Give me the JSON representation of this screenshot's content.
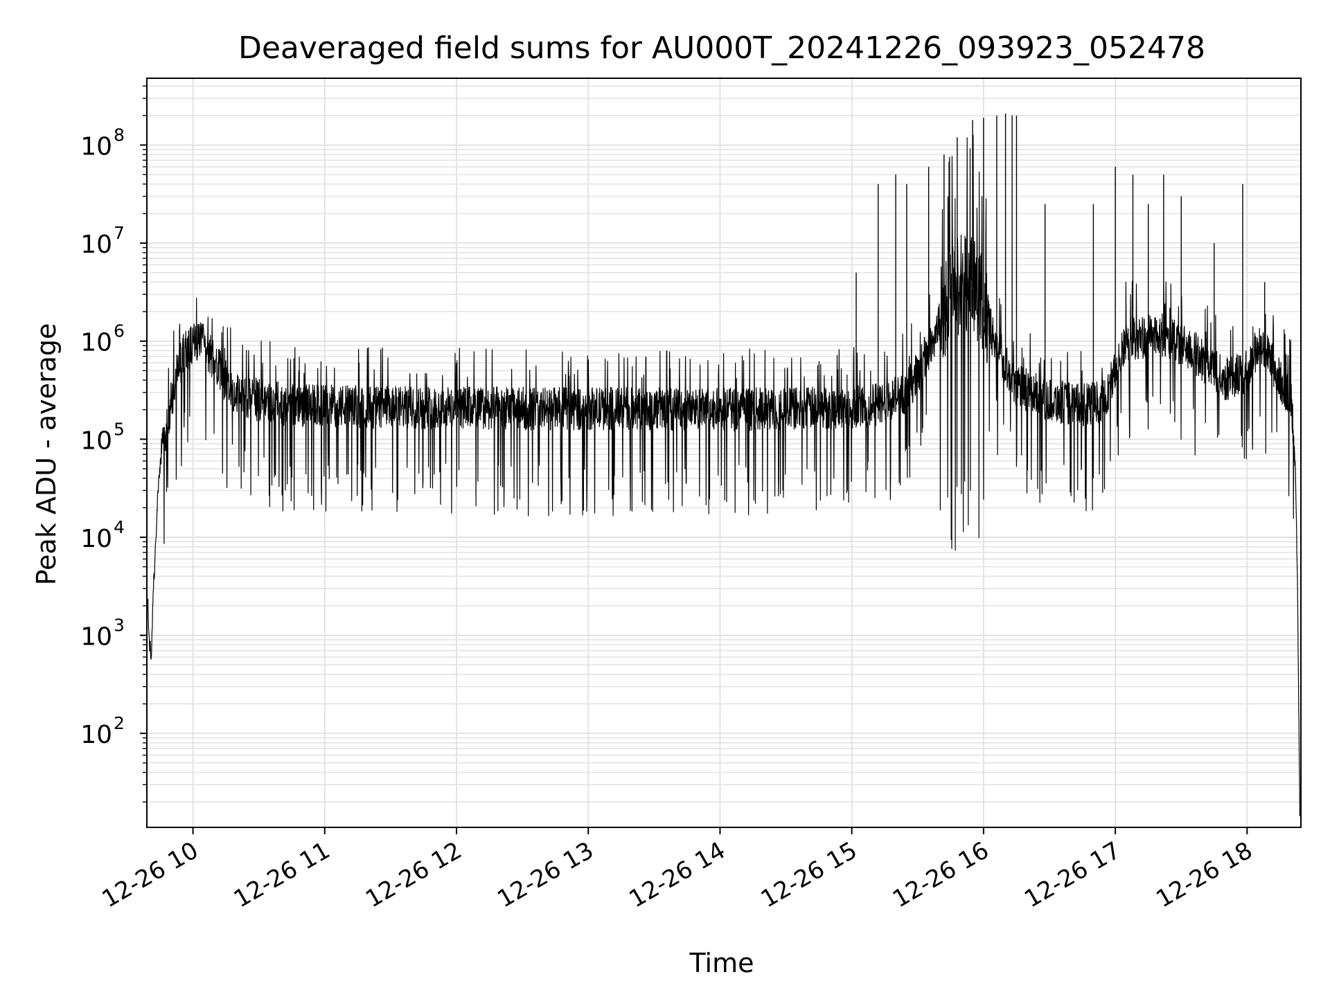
{
  "chart_data": {
    "type": "line",
    "title": "Deaveraged field sums for AU000T_20241226_093923_052478",
    "xlabel": "Time",
    "ylabel": "Peak ADU - average",
    "xlim": [
      "2024-12-26T09:39:00",
      "2024-12-26T18:24:30"
    ],
    "ylim": [
      11,
      480000000
    ],
    "yscale": "log",
    "grid": true,
    "grid_which": "both",
    "line_color": "#000000",
    "grid_color": "#e3e3e3",
    "x_ticks": [
      {
        "value": "2024-12-26T10:00:00",
        "label": "12-26 10"
      },
      {
        "value": "2024-12-26T11:00:00",
        "label": "12-26 11"
      },
      {
        "value": "2024-12-26T12:00:00",
        "label": "12-26 12"
      },
      {
        "value": "2024-12-26T13:00:00",
        "label": "12-26 13"
      },
      {
        "value": "2024-12-26T14:00:00",
        "label": "12-26 14"
      },
      {
        "value": "2024-12-26T15:00:00",
        "label": "12-26 15"
      },
      {
        "value": "2024-12-26T16:00:00",
        "label": "12-26 16"
      },
      {
        "value": "2024-12-26T17:00:00",
        "label": "12-26 17"
      },
      {
        "value": "2024-12-26T18:00:00",
        "label": "12-26 18"
      }
    ],
    "y_ticks": [
      {
        "value": 100,
        "label": "10",
        "exp": "2"
      },
      {
        "value": 1000,
        "label": "10",
        "exp": "3"
      },
      {
        "value": 10000,
        "label": "10",
        "exp": "4"
      },
      {
        "value": 100000,
        "label": "10",
        "exp": "5"
      },
      {
        "value": 1000000,
        "label": "10",
        "exp": "6"
      },
      {
        "value": 10000000,
        "label": "10",
        "exp": "7"
      },
      {
        "value": 100000000,
        "label": "10",
        "exp": "8"
      }
    ],
    "series": [
      {
        "x": [
          "2024-12-26T09:39:30",
          "2024-12-26T09:40:00",
          "2024-12-26T09:41:00",
          "2024-12-26T09:42:00",
          "2024-12-26T09:43:00",
          "2024-12-26T09:44:00",
          "2024-12-26T09:46:00",
          "2024-12-26T09:48:00",
          "2024-12-26T09:50:00",
          "2024-12-26T09:53:00",
          "2024-12-26T09:56:00",
          "2024-12-26T10:00:00",
          "2024-12-26T10:04:00",
          "2024-12-26T10:08:00",
          "2024-12-26T10:12:00",
          "2024-12-26T10:16:00",
          "2024-12-26T10:20:00",
          "2024-12-26T10:25:00",
          "2024-12-26T10:30:00",
          "2024-12-26T10:40:00",
          "2024-12-26T10:50:00",
          "2024-12-26T11:00:00",
          "2024-12-26T11:15:00",
          "2024-12-26T11:30:00",
          "2024-12-26T11:45:00",
          "2024-12-26T12:00:00",
          "2024-12-26T12:30:00",
          "2024-12-26T13:00:00",
          "2024-12-26T13:30:00",
          "2024-12-26T14:00:00",
          "2024-12-26T14:30:00",
          "2024-12-26T14:55:00",
          "2024-12-26T15:10:00",
          "2024-12-26T15:25:00",
          "2024-12-26T15:35:00",
          "2024-12-26T15:45:00",
          "2024-12-26T15:55:00",
          "2024-12-26T16:05:00",
          "2024-12-26T16:15:00",
          "2024-12-26T16:30:00",
          "2024-12-26T16:45:00",
          "2024-12-26T16:55:00",
          "2024-12-26T17:05:00",
          "2024-12-26T17:20:00",
          "2024-12-26T17:35:00",
          "2024-12-26T17:50:00",
          "2024-12-26T18:00:00",
          "2024-12-26T18:05:00",
          "2024-12-26T18:10:00",
          "2024-12-26T18:15:00",
          "2024-12-26T18:18:00",
          "2024-12-26T18:20:00",
          "2024-12-26T18:21:00",
          "2024-12-26T18:22:00",
          "2024-12-26T18:23:00",
          "2024-12-26T18:24:00"
        ],
        "y": [
          2000,
          900,
          600,
          3000,
          8000,
          30000,
          80000,
          120000,
          250000,
          500000,
          800000,
          950000,
          950000,
          700000,
          500000,
          350000,
          300000,
          270000,
          250000,
          230000,
          220000,
          220000,
          215000,
          210000,
          210000,
          210000,
          205000,
          205000,
          205000,
          200000,
          205000,
          210000,
          220000,
          300000,
          800000,
          3000000,
          5000000,
          1000000,
          350000,
          250000,
          220000,
          250000,
          1000000,
          1200000,
          800000,
          400000,
          500000,
          900000,
          700000,
          400000,
          300000,
          250000,
          120000,
          50000,
          3000,
          15
        ],
        "spikes": [
          {
            "x": "2024-12-26T15:02:00",
            "y": 5000000
          },
          {
            "x": "2024-12-26T15:12:00",
            "y": 40000000
          },
          {
            "x": "2024-12-26T15:20:00",
            "y": 50000000
          },
          {
            "x": "2024-12-26T15:25:00",
            "y": 40000000
          },
          {
            "x": "2024-12-26T15:35:00",
            "y": 60000000
          },
          {
            "x": "2024-12-26T15:42:00",
            "y": 80000000
          },
          {
            "x": "2024-12-26T15:48:00",
            "y": 120000000
          },
          {
            "x": "2024-12-26T15:55:00",
            "y": 180000000
          },
          {
            "x": "2024-12-26T16:00:00",
            "y": 190000000
          },
          {
            "x": "2024-12-26T16:06:00",
            "y": 200000000
          },
          {
            "x": "2024-12-26T16:10:00",
            "y": 210000000
          },
          {
            "x": "2024-12-26T16:13:00",
            "y": 200000000
          },
          {
            "x": "2024-12-26T16:15:00",
            "y": 200000000
          },
          {
            "x": "2024-12-26T16:28:00",
            "y": 25000000
          },
          {
            "x": "2024-12-26T16:50:00",
            "y": 25000000
          },
          {
            "x": "2024-12-26T17:00:00",
            "y": 60000000
          },
          {
            "x": "2024-12-26T17:08:00",
            "y": 50000000
          },
          {
            "x": "2024-12-26T17:15:00",
            "y": 25000000
          },
          {
            "x": "2024-12-26T17:22:00",
            "y": 50000000
          },
          {
            "x": "2024-12-26T17:30:00",
            "y": 30000000
          },
          {
            "x": "2024-12-26T17:45:00",
            "y": 10000000
          },
          {
            "x": "2024-12-26T17:58:00",
            "y": 40000000
          },
          {
            "x": "2024-12-26T18:08:00",
            "y": 4000000
          }
        ]
      }
    ]
  }
}
